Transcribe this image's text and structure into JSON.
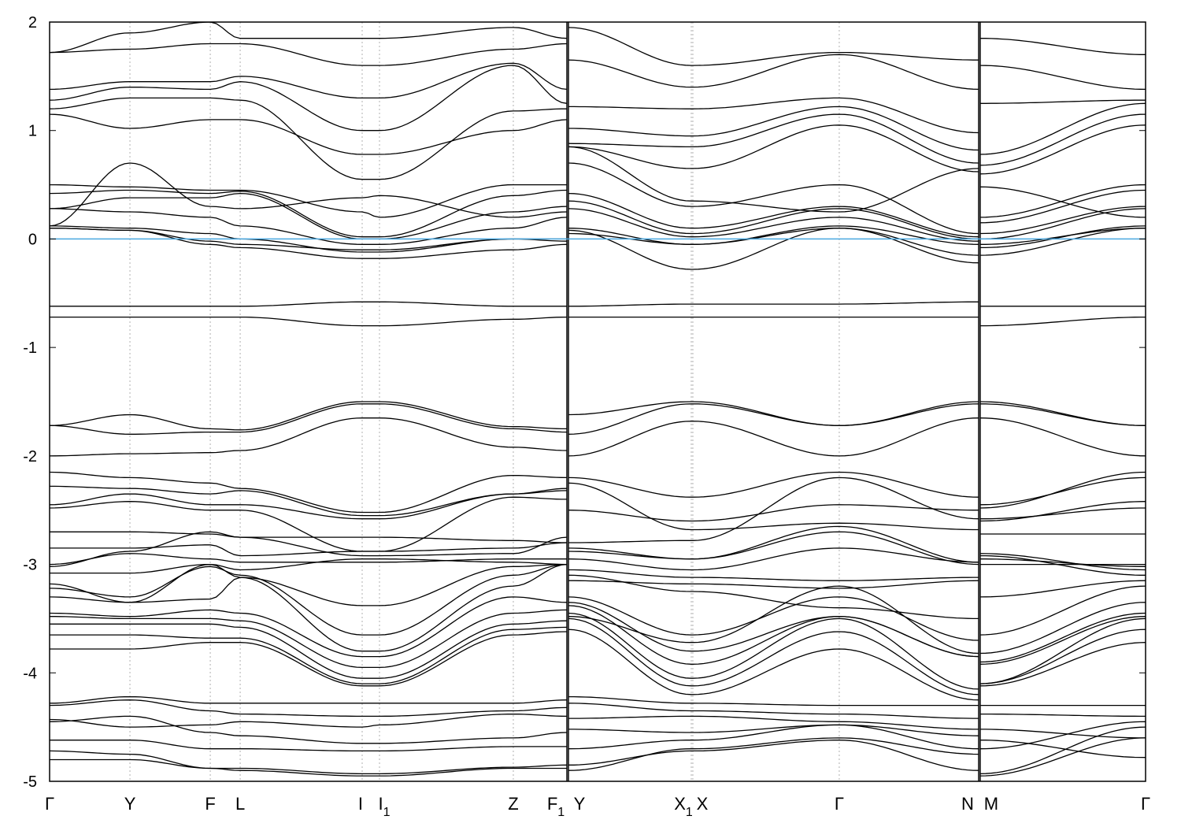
{
  "chart_data": {
    "type": "line",
    "title": "",
    "xlabel": "",
    "ylabel": "",
    "ylim": [
      -5,
      2
    ],
    "yticks": [
      -5,
      -4,
      -3,
      -2,
      -1,
      0,
      1,
      2
    ],
    "ytick_labels": [
      "-5",
      "-4",
      "-3",
      "-2",
      "-1",
      "0",
      "1",
      "2"
    ],
    "fermi_level": 0,
    "colors": {
      "bands": "#000000",
      "fermi": "#4aa8e0",
      "grid": "#b0b0b0"
    },
    "kpoints": [
      {
        "label": "Γ",
        "sub": "",
        "k": 0.0
      },
      {
        "label": "Y",
        "sub": "",
        "k": 0.0733
      },
      {
        "label": "F",
        "sub": "",
        "k": 0.1466
      },
      {
        "label": "L",
        "sub": "",
        "k": 0.1739
      },
      {
        "label": "I",
        "sub": "",
        "k": 0.2852
      },
      {
        "label": "I",
        "sub": "1",
        "k": 0.301
      },
      {
        "label": "Z",
        "sub": "",
        "k": 0.4231
      },
      {
        "label": "F",
        "sub": "1",
        "k": 0.472
      },
      {
        "label": "Y",
        "sub": "",
        "k": 0.4734
      },
      {
        "label": "X",
        "sub": "1",
        "k": 0.5855
      },
      {
        "label": "X",
        "sub": "",
        "k": 0.5869
      },
      {
        "label": "Γ",
        "sub": "",
        "k": 0.7205
      },
      {
        "label": "N",
        "sub": "",
        "k": 0.8477
      },
      {
        "label": "M",
        "sub": "",
        "k": 0.8491
      },
      {
        "label": "Γ",
        "sub": "",
        "k": 1.0
      }
    ],
    "path_breaks_after_index": [
      7,
      12
    ],
    "bands": [
      [
        -4.8,
        -4.8,
        -4.88,
        -4.9,
        -4.95,
        -4.95,
        -4.88,
        -4.88,
        -4.9,
        -4.7,
        -4.7,
        -4.6,
        -4.75,
        -4.95,
        -4.6
      ],
      [
        -4.72,
        -4.75,
        -4.88,
        -4.88,
        -4.93,
        -4.93,
        -4.87,
        -4.85,
        -4.85,
        -4.72,
        -4.72,
        -4.62,
        -4.9,
        -4.93,
        -4.5
      ],
      [
        -4.62,
        -4.62,
        -4.7,
        -4.7,
        -4.72,
        -4.72,
        -4.68,
        -4.68,
        -4.7,
        -4.62,
        -4.62,
        -4.48,
        -4.7,
        -4.7,
        -4.45
      ],
      [
        -4.45,
        -4.4,
        -4.55,
        -4.58,
        -4.65,
        -4.65,
        -4.6,
        -4.55,
        -4.52,
        -4.55,
        -4.55,
        -4.48,
        -4.58,
        -4.62,
        -4.78
      ],
      [
        -4.43,
        -4.5,
        -4.48,
        -4.45,
        -4.5,
        -4.48,
        -4.38,
        -4.4,
        -4.42,
        -4.4,
        -4.4,
        -4.45,
        -4.52,
        -4.52,
        -4.6
      ],
      [
        -4.3,
        -4.25,
        -4.35,
        -4.38,
        -4.4,
        -4.4,
        -4.35,
        -4.32,
        -4.28,
        -4.35,
        -4.35,
        -4.38,
        -4.42,
        -4.38,
        -4.4
      ],
      [
        -4.28,
        -4.22,
        -4.28,
        -4.28,
        -4.28,
        -4.28,
        -4.28,
        -4.25,
        -4.22,
        -4.28,
        -4.28,
        -4.3,
        -4.3,
        -4.3,
        -4.3
      ],
      [
        -3.78,
        -3.78,
        -3.72,
        -3.72,
        -4.12,
        -4.12,
        -3.65,
        -3.62,
        -3.6,
        -4.2,
        -4.2,
        -3.78,
        -4.25,
        -4.12,
        -3.72
      ],
      [
        -3.65,
        -3.65,
        -3.68,
        -3.68,
        -4.1,
        -4.1,
        -3.6,
        -3.58,
        -3.5,
        -4.12,
        -4.12,
        -3.62,
        -4.2,
        -4.1,
        -3.6
      ],
      [
        -3.55,
        -3.55,
        -3.55,
        -3.58,
        -4.05,
        -4.05,
        -3.55,
        -3.52,
        -3.45,
        -4.05,
        -4.05,
        -3.5,
        -4.15,
        -4.1,
        -3.5
      ],
      [
        -3.48,
        -3.5,
        -3.5,
        -3.52,
        -3.95,
        -3.95,
        -3.45,
        -3.42,
        -3.38,
        -3.92,
        -3.92,
        -3.48,
        -3.85,
        -3.92,
        -3.48
      ],
      [
        -3.45,
        -3.48,
        -3.42,
        -3.45,
        -3.85,
        -3.85,
        -3.3,
        -3.35,
        -3.35,
        -3.8,
        -3.8,
        -3.48,
        -3.85,
        -3.9,
        -3.45
      ],
      [
        -3.3,
        -3.35,
        -3.0,
        -3.12,
        -3.8,
        -3.8,
        -3.2,
        -3.0,
        -3.48,
        -3.72,
        -3.72,
        -3.2,
        -3.82,
        -3.82,
        -3.35
      ],
      [
        -3.22,
        -3.3,
        -3.02,
        -3.1,
        -3.65,
        -3.65,
        -3.1,
        -3.0,
        -3.3,
        -3.65,
        -3.65,
        -3.3,
        -3.7,
        -3.65,
        -3.2
      ],
      [
        -3.18,
        -3.35,
        -3.32,
        -3.12,
        -3.38,
        -3.38,
        -3.02,
        -3.0,
        -3.1,
        -3.25,
        -3.25,
        -3.4,
        -3.5,
        -3.3,
        -3.15
      ],
      [
        -3.08,
        -3.08,
        -3.0,
        -3.05,
        -2.95,
        -2.95,
        -2.98,
        -3.0,
        -3.15,
        -3.18,
        -3.18,
        -3.22,
        -3.15,
        -3.0,
        -3.0
      ],
      [
        -3.0,
        -2.9,
        -2.95,
        -2.98,
        -2.98,
        -2.98,
        -2.95,
        -2.95,
        -3.05,
        -3.12,
        -3.12,
        -3.15,
        -3.12,
        -2.95,
        -3.02
      ],
      [
        -3.02,
        -2.88,
        -2.7,
        -2.75,
        -2.92,
        -2.92,
        -2.9,
        -2.75,
        -2.95,
        -3.05,
        -3.05,
        -2.85,
        -2.98,
        -2.9,
        -3.05
      ],
      [
        -2.85,
        -2.85,
        -2.82,
        -2.92,
        -2.88,
        -2.88,
        -2.85,
        -2.8,
        -2.88,
        -2.95,
        -2.95,
        -2.7,
        -3.0,
        -2.92,
        -3.1
      ],
      [
        -2.7,
        -2.7,
        -2.72,
        -2.75,
        -2.75,
        -2.75,
        -2.78,
        -2.8,
        -2.85,
        -2.95,
        -2.95,
        -2.65,
        -2.98,
        -2.72,
        -2.72
      ],
      [
        -2.48,
        -2.42,
        -2.5,
        -2.5,
        -2.88,
        -2.88,
        -2.38,
        -2.4,
        -2.8,
        -2.78,
        -2.78,
        -2.2,
        -2.58,
        -2.6,
        -2.42
      ],
      [
        -2.45,
        -2.35,
        -2.45,
        -2.45,
        -2.58,
        -2.58,
        -2.35,
        -2.32,
        -2.25,
        -2.68,
        -2.68,
        -2.62,
        -2.68,
        -2.58,
        -2.48
      ],
      [
        -2.28,
        -2.3,
        -2.35,
        -2.32,
        -2.55,
        -2.55,
        -2.35,
        -2.3,
        -2.5,
        -2.6,
        -2.6,
        -2.45,
        -2.5,
        -2.45,
        -2.2
      ],
      [
        -2.15,
        -2.2,
        -2.25,
        -2.3,
        -2.52,
        -2.52,
        -2.18,
        -2.2,
        -2.2,
        -2.38,
        -2.38,
        -2.15,
        -2.38,
        -2.48,
        -2.15
      ],
      [
        -2.0,
        -1.98,
        -1.97,
        -1.95,
        -1.65,
        -1.65,
        -1.92,
        -1.95,
        -2.0,
        -1.68,
        -1.68,
        -2.0,
        -1.65,
        -1.65,
        -2.0
      ],
      [
        -1.72,
        -1.8,
        -1.78,
        -1.78,
        -1.52,
        -1.52,
        -1.75,
        -1.78,
        -1.8,
        -1.52,
        -1.52,
        -1.72,
        -1.52,
        -1.52,
        -1.72
      ],
      [
        -1.72,
        -1.62,
        -1.75,
        -1.76,
        -1.5,
        -1.5,
        -1.73,
        -1.75,
        -1.62,
        -1.5,
        -1.5,
        -1.72,
        -1.5,
        -1.5,
        -1.72
      ],
      [
        -0.62,
        -0.62,
        -0.62,
        -0.62,
        -0.58,
        -0.58,
        -0.62,
        -0.62,
        -0.62,
        -0.6,
        -0.6,
        -0.6,
        -0.58,
        -0.62,
        -0.62
      ],
      [
        -0.72,
        -0.72,
        -0.72,
        -0.72,
        -0.8,
        -0.8,
        -0.74,
        -0.72,
        -0.72,
        -0.72,
        -0.72,
        -0.72,
        -0.72,
        -0.8,
        -0.72
      ],
      [
        0.1,
        0.08,
        -0.05,
        -0.08,
        -0.18,
        -0.18,
        -0.1,
        -0.05,
        0.08,
        -0.28,
        -0.28,
        0.1,
        -0.22,
        -0.15,
        0.1
      ],
      [
        0.1,
        0.08,
        -0.02,
        -0.05,
        -0.1,
        -0.1,
        0.0,
        -0.02,
        0.05,
        -0.05,
        -0.05,
        0.1,
        -0.15,
        -0.08,
        0.12
      ],
      [
        0.12,
        0.1,
        0.05,
        0.0,
        -0.12,
        -0.12,
        0.0,
        0.0,
        0.1,
        -0.05,
        -0.05,
        0.12,
        -0.05,
        -0.05,
        0.1
      ],
      [
        0.28,
        0.25,
        0.2,
        0.12,
        -0.05,
        -0.05,
        0.1,
        0.2,
        0.28,
        0.02,
        0.02,
        0.2,
        -0.02,
        0.0,
        0.28
      ],
      [
        0.28,
        0.38,
        0.38,
        0.42,
        0.0,
        0.0,
        0.25,
        0.3,
        0.35,
        0.05,
        0.05,
        0.28,
        0.0,
        0.05,
        0.3
      ],
      [
        0.42,
        0.45,
        0.42,
        0.44,
        0.02,
        0.02,
        0.4,
        0.45,
        0.42,
        0.1,
        0.1,
        0.3,
        0.02,
        0.15,
        0.45
      ],
      [
        0.5,
        0.48,
        0.45,
        0.45,
        0.25,
        0.2,
        0.5,
        0.5,
        0.7,
        0.3,
        0.3,
        0.5,
        0.05,
        0.2,
        0.5
      ],
      [
        0.12,
        0.7,
        0.3,
        0.28,
        0.38,
        0.4,
        0.2,
        0.25,
        0.85,
        0.35,
        0.35,
        0.25,
        0.65,
        0.48,
        0.2
      ],
      [
        1.15,
        1.02,
        1.1,
        1.1,
        0.78,
        0.78,
        1.0,
        1.1,
        0.85,
        0.65,
        0.65,
        1.05,
        0.62,
        0.6,
        1.05
      ],
      [
        1.2,
        1.3,
        1.3,
        1.28,
        0.55,
        0.55,
        1.18,
        1.2,
        0.88,
        0.85,
        0.85,
        1.15,
        0.7,
        0.68,
        1.15
      ],
      [
        1.28,
        1.4,
        1.38,
        1.45,
        1.0,
        1.0,
        1.6,
        1.25,
        1.02,
        0.95,
        0.95,
        1.22,
        0.82,
        0.78,
        1.25
      ],
      [
        1.38,
        1.45,
        1.45,
        1.5,
        1.3,
        1.3,
        1.62,
        1.38,
        1.22,
        1.2,
        1.2,
        1.3,
        0.98,
        1.25,
        1.28
      ],
      [
        1.72,
        1.75,
        1.8,
        1.8,
        1.6,
        1.6,
        1.75,
        1.8,
        1.65,
        1.4,
        1.4,
        1.7,
        1.38,
        1.6,
        1.38
      ],
      [
        1.72,
        1.9,
        2.0,
        1.85,
        1.85,
        1.85,
        1.95,
        1.85,
        1.95,
        1.6,
        1.6,
        1.72,
        1.65,
        1.85,
        1.7
      ]
    ]
  }
}
